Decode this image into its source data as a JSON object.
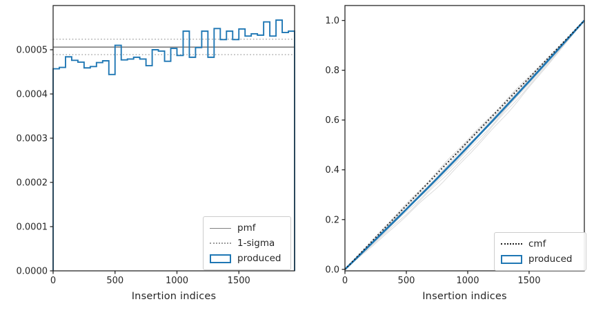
{
  "figure": {
    "background": "#ffffff"
  },
  "palette": {
    "accent_blue": "#1f77b4",
    "pmf_gray": "#808080",
    "sigma_gray": "#a8a8a8",
    "cmf_black": "#1a1a1a",
    "reference_line_gray": "#d7d7d7",
    "axis_color": "#262626"
  },
  "chart_data": [
    {
      "type": "bar",
      "subtype": "step-histogram",
      "title": "",
      "xlabel": "Insertion indices",
      "ylabel": "",
      "xlim": [
        0,
        1950
      ],
      "ylim": [
        0,
        0.0006
      ],
      "grid": false,
      "xticks": [
        0,
        500,
        1000,
        1500
      ],
      "xtick_labels": [
        "0",
        "500",
        "1000",
        "1500"
      ],
      "yticks": [
        0.0,
        0.0001,
        0.0002,
        0.0003,
        0.0004,
        0.0005
      ],
      "ytick_labels": [
        "0.0000",
        "0.0001",
        "0.0002",
        "0.0003",
        "0.0004",
        "0.0005"
      ],
      "legend_position": "lower right",
      "legend": [
        {
          "label": "pmf",
          "glyph": "solid-gray-line"
        },
        {
          "label": "1-sigma",
          "glyph": "dotted-gray-line"
        },
        {
          "label": "produced",
          "glyph": "blue-outline-patch"
        }
      ],
      "pmf_line": 0.000506,
      "sigma_lines": [
        0.000524,
        0.000489
      ],
      "bins": {
        "start": 0,
        "width": 50,
        "count": 39
      },
      "bin_values": [
        0.000457,
        0.00046,
        0.000484,
        0.000476,
        0.000472,
        0.000459,
        0.000462,
        0.000471,
        0.000475,
        0.000444,
        0.00051,
        0.000477,
        0.000479,
        0.000483,
        0.000479,
        0.000464,
        0.0005,
        0.000497,
        0.000474,
        0.000503,
        0.000487,
        0.000542,
        0.000483,
        0.000505,
        0.000542,
        0.000483,
        0.000548,
        0.000523,
        0.000542,
        0.000523,
        0.000547,
        0.000531,
        0.000536,
        0.000533,
        0.000563,
        0.000531,
        0.000567,
        0.000539,
        0.000542
      ]
    },
    {
      "type": "line",
      "title": "",
      "xlabel": "Insertion indices",
      "ylabel": "",
      "xlim": [
        0,
        1950
      ],
      "ylim": [
        -0.006,
        1.06
      ],
      "grid": false,
      "xticks": [
        0,
        500,
        1000,
        1500
      ],
      "xtick_labels": [
        "0",
        "500",
        "1000",
        "1500"
      ],
      "yticks": [
        0.0,
        0.2,
        0.4,
        0.6,
        0.8,
        1.0
      ],
      "ytick_labels": [
        "0.0",
        "0.2",
        "0.4",
        "0.6",
        "0.8",
        "1.0"
      ],
      "legend_position": "lower right",
      "legend": [
        {
          "label": "cmf",
          "glyph": "dotted-black-line"
        },
        {
          "label": "produced",
          "glyph": "blue-outline-patch"
        }
      ],
      "cmf_line": {
        "x": [
          0,
          1950
        ],
        "y": [
          0.0,
          1.0
        ]
      },
      "produced_line": {
        "x": [
          0,
          100,
          200,
          300,
          400,
          500,
          600,
          700,
          800,
          900,
          1000,
          1100,
          1200,
          1300,
          1400,
          1500,
          1600,
          1700,
          1800,
          1900,
          1950
        ],
        "y": [
          0.0,
          0.0479,
          0.0959,
          0.1441,
          0.1925,
          0.2413,
          0.2904,
          0.34,
          0.3901,
          0.4407,
          0.4918,
          0.5435,
          0.5957,
          0.6485,
          0.7017,
          0.7553,
          0.8093,
          0.8636,
          0.9181,
          0.9727,
          1.0
        ]
      },
      "reference_run_sags": [
        -0.008,
        -0.003,
        0.007,
        0.013,
        0.02,
        0.027,
        0.035,
        0.046,
        0.058
      ]
    }
  ]
}
